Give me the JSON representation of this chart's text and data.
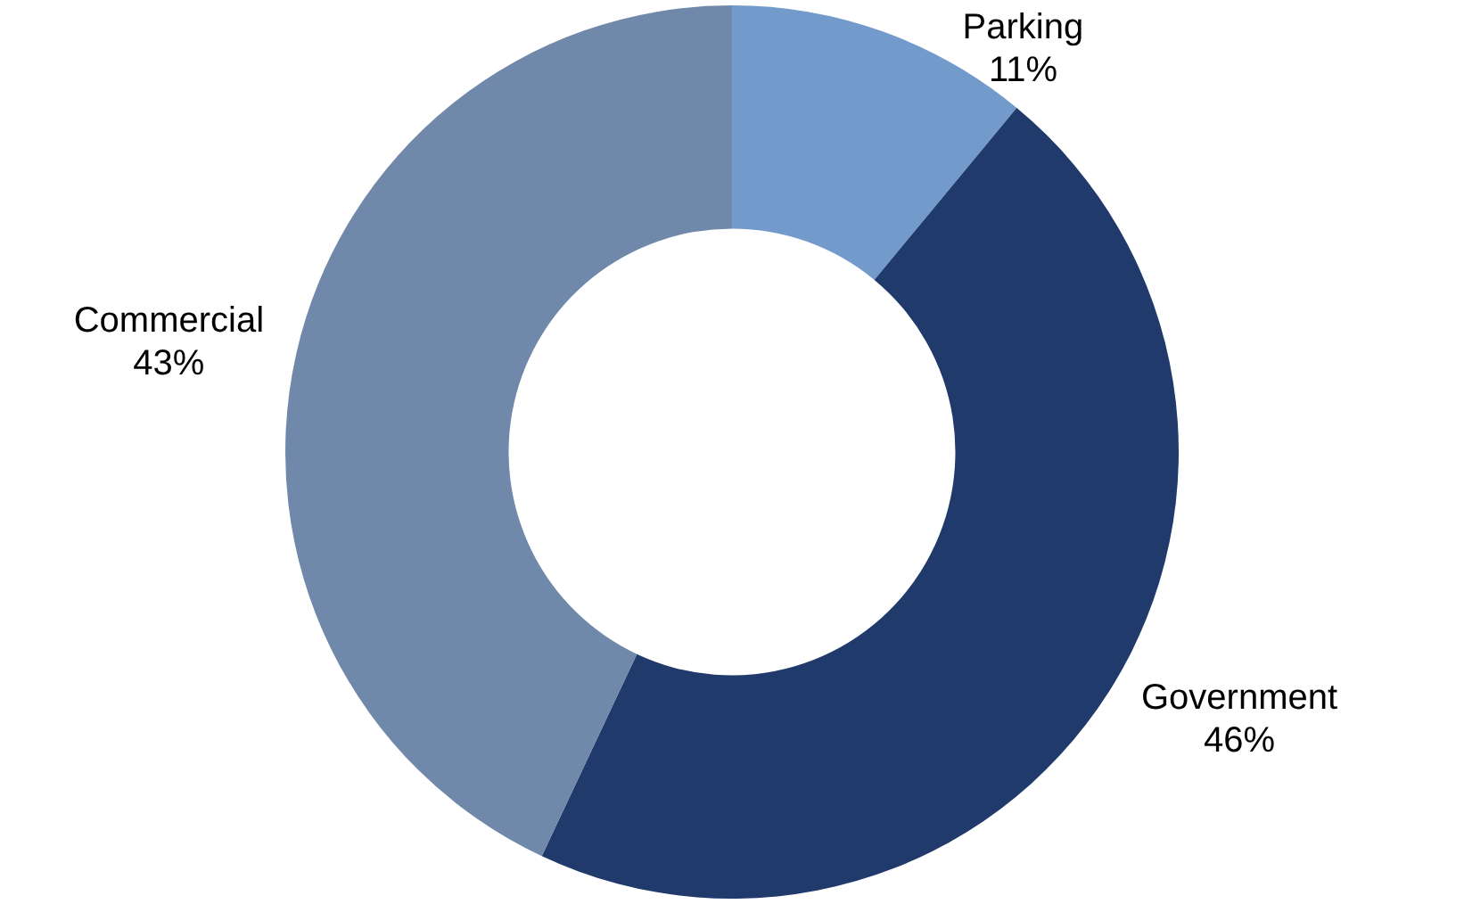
{
  "chart_data": {
    "type": "donut",
    "categories": [
      "Parking",
      "Government",
      "Commercial"
    ],
    "values": [
      11,
      46,
      43
    ],
    "colors": [
      "#729acb",
      "#1f3a6b",
      "#7089aa"
    ],
    "value_labels": [
      "11%",
      "46%",
      "43%"
    ],
    "legend": false
  }
}
